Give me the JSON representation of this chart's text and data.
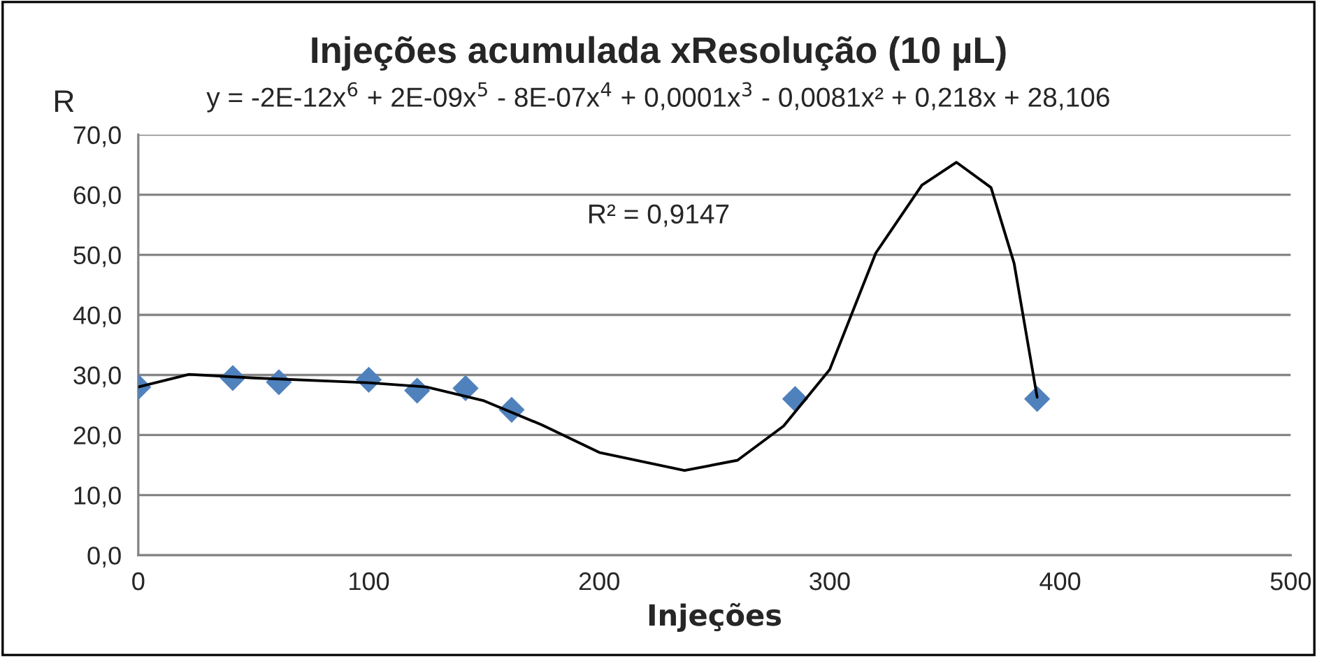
{
  "chart_data": {
    "type": "scatter",
    "title": "Injeções acumulada xResolução (10 µL)",
    "xlabel": "Injeções",
    "ylabel": "R",
    "annotations": [
      "y = -2E-12x$^{6}$ + 2E-09x$^{5}$ - 8E-07x$^{4}$ + 0,0001x$^{3}$ - 0,0081x² + 0,218x + 28,106",
      "R² = 0,9147"
    ],
    "x": [
      0,
      41,
      61,
      100,
      121,
      142,
      162,
      285,
      390
    ],
    "series": [
      {
        "color": "#4f81bd",
        "marker": "diamond",
        "values": [
          28.0,
          29.5,
          28.8,
          29.2,
          27.4,
          27.8,
          24.2,
          26.0,
          26.0
        ]
      },
      {
        "type": "line",
        "color": "#000000",
        "marker": "none",
        "x": [
          0,
          22,
          50,
          100,
          125,
          150,
          175,
          200,
          237,
          260,
          280,
          300,
          320,
          340,
          355,
          370,
          380,
          390
        ],
        "values": [
          28.0,
          30.1,
          29.5,
          28.7,
          28.0,
          25.7,
          21.7,
          17.1,
          14.1,
          15.8,
          21.5,
          30.9,
          50.3,
          61.6,
          65.4,
          61.2,
          48.6,
          26.3
        ]
      }
    ],
    "xlim": [
      0,
      500
    ],
    "xticks": [
      0,
      100,
      200,
      300,
      400,
      500
    ],
    "ylim": [
      0,
      70
    ],
    "yticks": [
      {
        "value": 0,
        "label": "0,0"
      },
      {
        "value": 10,
        "label": "10,0"
      },
      {
        "value": 20,
        "label": "20,0"
      },
      {
        "value": 30,
        "label": "30,0"
      },
      {
        "value": 40,
        "label": "40,0"
      },
      {
        "value": 50,
        "label": "50,0"
      },
      {
        "value": 60,
        "label": "60,0"
      },
      {
        "value": 70,
        "label": "70,0"
      }
    ],
    "grid": "y"
  }
}
